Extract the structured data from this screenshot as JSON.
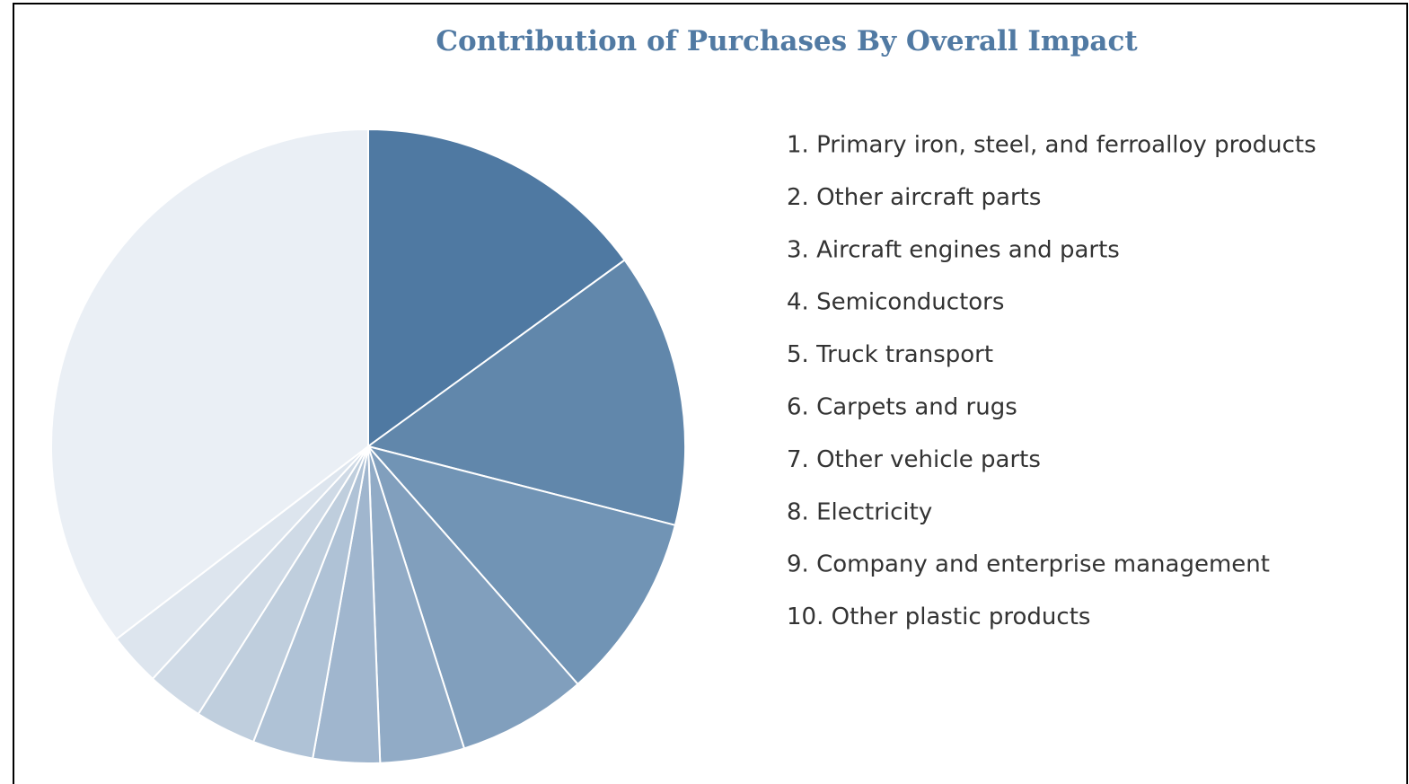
{
  "chart_data": {
    "type": "pie",
    "title": "Contribution of Purchases By Overall Impact",
    "categories": [
      "1. Primary iron, steel, and ferroalloy products",
      "2. Other aircraft parts",
      "3. Aircraft engines and parts",
      "4. Semiconductors",
      "5. Truck transport",
      "6. Carpets and rugs",
      "7. Other vehicle parts",
      "8. Electricity",
      "9. Company and enterprise management",
      "10. Other plastic products",
      null
    ],
    "values": [
      15,
      14,
      9.5,
      6.6,
      4.3,
      3.4,
      3.1,
      3.1,
      2.9,
      2.7,
      35.4
    ],
    "colors": [
      "#4f79a2",
      "#6187ab",
      "#7194b5",
      "#819fbd",
      "#91abc6",
      "#a0b6ce",
      "#afc2d6",
      "#bfcedd",
      "#cfdae6",
      "#dde5ee",
      "#eaeff5"
    ]
  }
}
